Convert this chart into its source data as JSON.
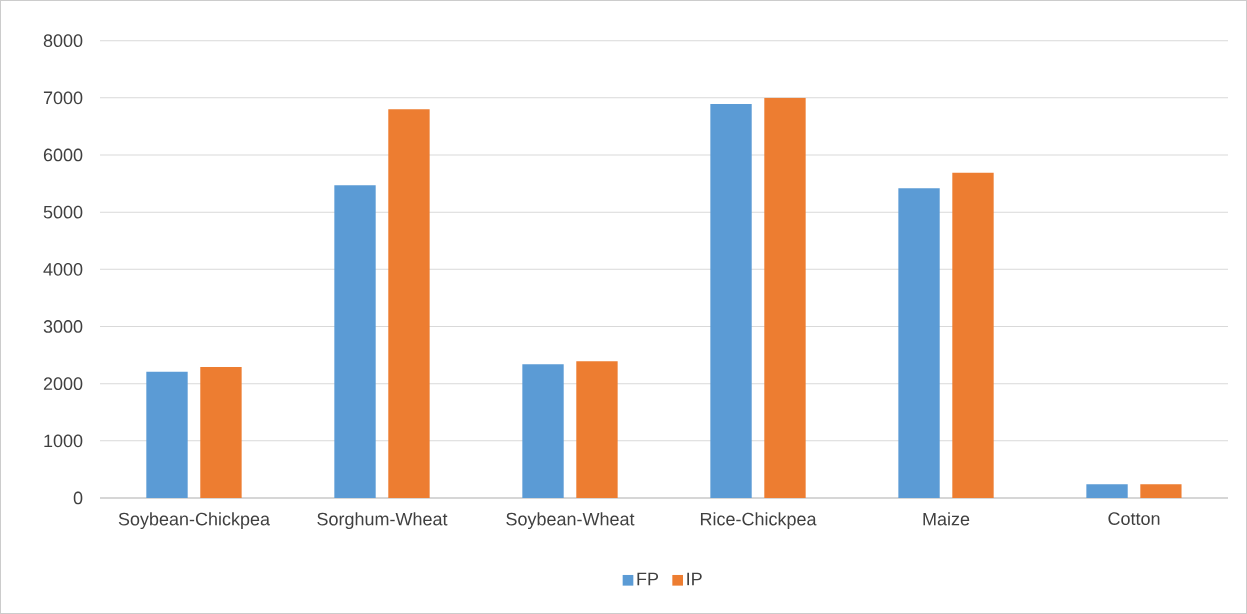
{
  "chart_data": {
    "type": "bar",
    "categories": [
      "Soybean-Chickpea",
      "Sorghum-Wheat",
      "Soybean-Wheat",
      "Rice-Chickpea",
      "Maize",
      "Cotton"
    ],
    "series": [
      {
        "name": "FP",
        "color": "#5b9bd5",
        "values": [
          2210,
          5470,
          2340,
          6890,
          5420,
          240
        ]
      },
      {
        "name": "IP",
        "color": "#ed7d31",
        "values": [
          2290,
          6800,
          2390,
          7000,
          5690,
          240
        ]
      }
    ],
    "ylim": [
      0,
      8000
    ],
    "yticks": [
      0,
      1000,
      2000,
      3000,
      4000,
      5000,
      6000,
      7000,
      8000
    ],
    "grid": "y",
    "legend": "bottom"
  }
}
